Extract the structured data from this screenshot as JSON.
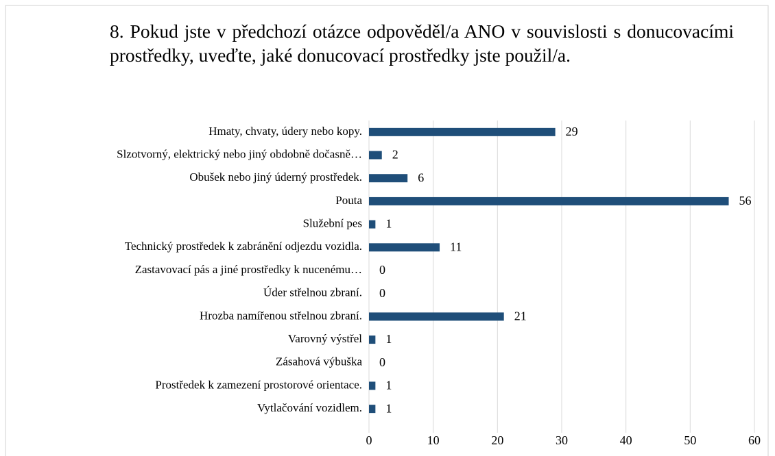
{
  "chart_data": {
    "type": "bar",
    "orientation": "horizontal",
    "title": "8. Pokud jste v předchozí otázce odpověděl/a ANO v souvislosti s donucovacími prostředky, uveďte, jaké donucovací prostředky jste použil/a.",
    "categories": [
      "Hmaty, chvaty, údery nebo kopy.",
      "Slzotvorný, elektrický nebo jiný obdobně dočasně…",
      "Obušek nebo jiný úderný prostředek.",
      "Pouta",
      "Služební pes",
      "Technický prostředek k zabránění odjezdu vozidla.",
      "Zastavovací pás a jiné prostředky k nucenému…",
      "Úder střelnou zbraní.",
      "Hrozba namířenou střelnou zbraní.",
      "Varovný výstřel",
      "Zásahová výbuška",
      "Prostředek k zamezení prostorové orientace.",
      "Vytlačování vozidlem."
    ],
    "values": [
      29,
      2,
      6,
      56,
      1,
      11,
      0,
      0,
      21,
      1,
      0,
      1,
      1
    ],
    "color": "#1f4e79",
    "xlim": [
      0,
      60
    ],
    "xticks": [
      0,
      10,
      20,
      30,
      40,
      50,
      60
    ],
    "grid": true
  }
}
